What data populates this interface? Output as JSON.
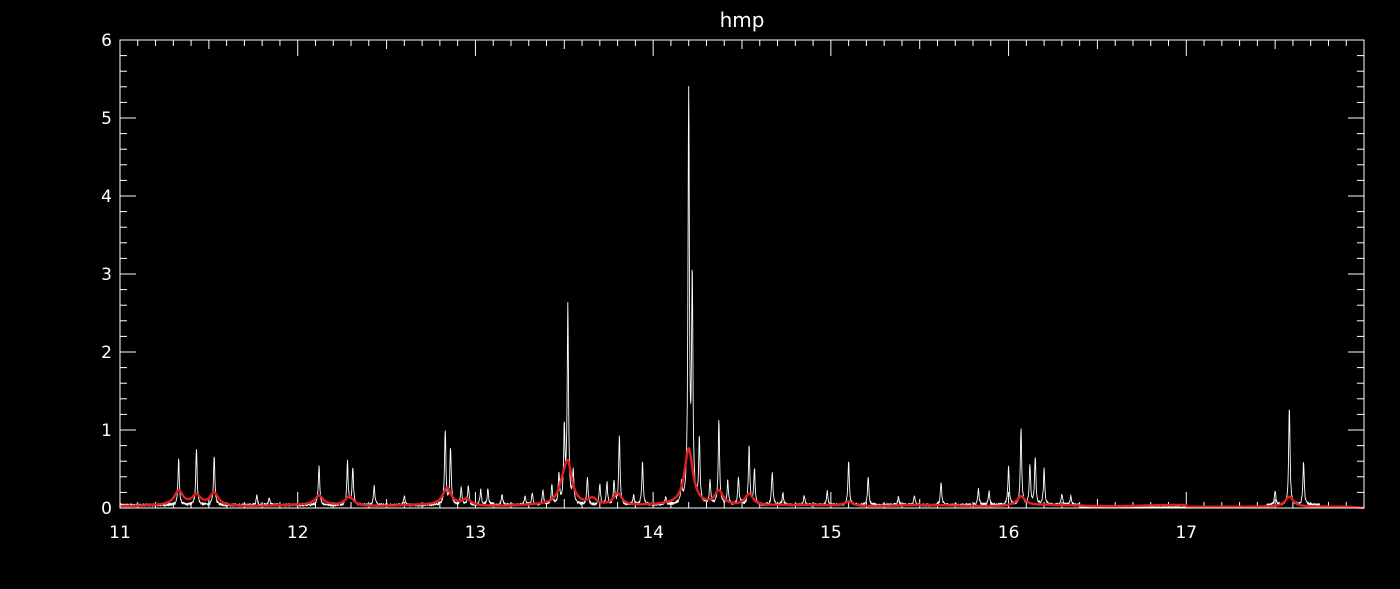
{
  "chart_data": {
    "type": "line",
    "title": "hmp",
    "xlabel": "",
    "ylabel": "",
    "xlim": [
      11,
      18
    ],
    "ylim": [
      0,
      6
    ],
    "x_ticks": [
      11,
      12,
      13,
      14,
      15,
      16,
      17
    ],
    "y_ticks": [
      0,
      1,
      2,
      3,
      4,
      5,
      6
    ],
    "background": "#000000",
    "grid": false,
    "legend": "none",
    "series": [
      {
        "color": "#ffffff",
        "style": "thin-line",
        "peaks": [
          [
            11.33,
            0.58
          ],
          [
            11.43,
            0.72
          ],
          [
            11.53,
            0.62
          ],
          [
            11.77,
            0.12
          ],
          [
            11.84,
            0.1
          ],
          [
            12.12,
            0.52
          ],
          [
            12.28,
            0.55
          ],
          [
            12.31,
            0.48
          ],
          [
            12.43,
            0.24
          ],
          [
            12.6,
            0.12
          ],
          [
            12.83,
            0.95
          ],
          [
            12.86,
            0.72
          ],
          [
            12.92,
            0.22
          ],
          [
            12.96,
            0.25
          ],
          [
            13.03,
            0.2
          ],
          [
            13.07,
            0.2
          ],
          [
            13.15,
            0.14
          ],
          [
            13.28,
            0.12
          ],
          [
            13.32,
            0.14
          ],
          [
            13.38,
            0.18
          ],
          [
            13.43,
            0.25
          ],
          [
            13.47,
            0.38
          ],
          [
            13.5,
            0.95
          ],
          [
            13.52,
            2.55
          ],
          [
            13.55,
            0.42
          ],
          [
            13.63,
            0.35
          ],
          [
            13.7,
            0.25
          ],
          [
            13.74,
            0.28
          ],
          [
            13.78,
            0.3
          ],
          [
            13.81,
            0.88
          ],
          [
            13.89,
            0.12
          ],
          [
            13.94,
            0.55
          ],
          [
            14.07,
            0.1
          ],
          [
            14.16,
            0.25
          ],
          [
            14.2,
            5.22
          ],
          [
            14.22,
            2.8
          ],
          [
            14.26,
            0.82
          ],
          [
            14.32,
            0.3
          ],
          [
            14.37,
            1.07
          ],
          [
            14.42,
            0.3
          ],
          [
            14.48,
            0.35
          ],
          [
            14.54,
            0.75
          ],
          [
            14.57,
            0.45
          ],
          [
            14.67,
            0.42
          ],
          [
            14.73,
            0.15
          ],
          [
            14.85,
            0.12
          ],
          [
            14.98,
            0.18
          ],
          [
            15.1,
            0.55
          ],
          [
            15.21,
            0.35
          ],
          [
            15.38,
            0.1
          ],
          [
            15.47,
            0.12
          ],
          [
            15.62,
            0.28
          ],
          [
            15.83,
            0.2
          ],
          [
            15.89,
            0.18
          ],
          [
            16.0,
            0.48
          ],
          [
            16.07,
            0.98
          ],
          [
            16.12,
            0.5
          ],
          [
            16.15,
            0.58
          ],
          [
            16.2,
            0.45
          ],
          [
            16.3,
            0.15
          ],
          [
            16.35,
            0.12
          ],
          [
            17.5,
            0.18
          ],
          [
            17.58,
            1.25
          ],
          [
            17.66,
            0.55
          ]
        ]
      },
      {
        "color": "#e02020",
        "style": "thick-line",
        "peaks": [
          [
            11.33,
            0.18
          ],
          [
            11.43,
            0.12
          ],
          [
            11.53,
            0.16
          ],
          [
            12.12,
            0.12
          ],
          [
            12.29,
            0.12
          ],
          [
            12.84,
            0.22
          ],
          [
            12.95,
            0.08
          ],
          [
            13.49,
            0.15
          ],
          [
            13.52,
            0.5
          ],
          [
            13.66,
            0.08
          ],
          [
            13.8,
            0.16
          ],
          [
            14.2,
            0.72
          ],
          [
            14.37,
            0.18
          ],
          [
            14.54,
            0.15
          ],
          [
            15.1,
            0.06
          ],
          [
            16.07,
            0.12
          ],
          [
            17.58,
            0.13
          ]
        ]
      }
    ]
  }
}
